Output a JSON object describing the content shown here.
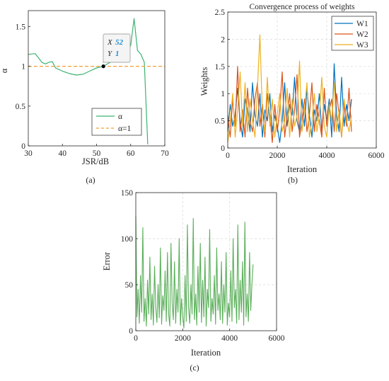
{
  "figure": {
    "label_a": "(a)",
    "label_b": "(b)",
    "label_c": "(c)"
  },
  "chart_data": [
    {
      "id": "a",
      "type": "line",
      "title": "",
      "xlabel": "JSR/dB",
      "ylabel": "α",
      "xlim": [
        30,
        70
      ],
      "ylim": [
        0,
        1.7
      ],
      "xticks": [
        30,
        40,
        50,
        60,
        70
      ],
      "xtick_labels": [
        "30",
        "40",
        "50",
        "60",
        "70"
      ],
      "yticks": [
        0,
        0.5,
        1,
        1.5
      ],
      "ytick_labels": [
        "0",
        "0.5",
        "1",
        "1.5"
      ],
      "grid": false,
      "legend_position": "lower-right",
      "series": [
        {
          "name": "α",
          "color": "#3cb371",
          "style": "solid",
          "x": [
            30,
            32,
            34,
            35,
            36,
            37,
            38,
            40,
            42,
            44,
            46,
            48,
            50,
            52,
            54,
            55,
            56,
            58,
            59,
            60,
            61,
            62,
            63,
            64,
            65
          ],
          "y": [
            1.15,
            1.16,
            1.05,
            1.03,
            1.05,
            1.06,
            0.98,
            0.94,
            0.91,
            0.89,
            0.9,
            0.94,
            0.98,
            1.0,
            1.05,
            1.1,
            1.15,
            1.18,
            1.2,
            1.26,
            1.6,
            1.2,
            1.15,
            1.05,
            0.02
          ]
        },
        {
          "name": "α=1",
          "color": "#f0a030",
          "style": "dashed",
          "x": [
            30,
            70
          ],
          "y": [
            1,
            1
          ]
        }
      ],
      "datatip": {
        "x": 52,
        "y": 1,
        "x_key": "X",
        "y_key": "Y",
        "x_text": "52",
        "y_text": "1"
      }
    },
    {
      "id": "b",
      "type": "line",
      "title": "Convergence process of weights",
      "xlabel": "Iteration",
      "ylabel": "Weights",
      "xlim": [
        0,
        6000
      ],
      "ylim": [
        0,
        2.5
      ],
      "xticks": [
        0,
        2000,
        4000,
        6000
      ],
      "xtick_labels": [
        "0",
        "2000",
        "4000",
        "6000"
      ],
      "yticks": [
        0,
        0.5,
        1,
        1.5,
        2,
        2.5
      ],
      "ytick_labels": [
        "0",
        "0.5",
        "1",
        "1.5",
        "2",
        "2.5"
      ],
      "grid": true,
      "legend_position": "top-right",
      "series": [
        {
          "name": "W1",
          "color": "#0072bd",
          "x": [
            0,
            100,
            200,
            300,
            400,
            500,
            600,
            700,
            800,
            900,
            1000,
            1100,
            1200,
            1300,
            1400,
            1500,
            1600,
            1700,
            1800,
            1900,
            2000,
            2100,
            2200,
            2300,
            2400,
            2500,
            2600,
            2700,
            2800,
            2900,
            3000,
            3100,
            3200,
            3300,
            3400,
            3500,
            3600,
            3700,
            3800,
            3900,
            4000,
            4100,
            4200,
            4300,
            4400,
            4500,
            4600,
            4700,
            4800,
            4900,
            5000
          ],
          "y": [
            0.3,
            0.8,
            0.4,
            0.6,
            1.1,
            0.5,
            0.2,
            0.9,
            0.7,
            0.3,
            1.2,
            0.6,
            0.4,
            1.0,
            0.2,
            0.7,
            0.5,
            1.0,
            0.3,
            0.6,
            0.4,
            0.1,
            0.5,
            1.2,
            0.4,
            0.8,
            0.6,
            1.3,
            0.5,
            0.3,
            0.9,
            0.4,
            1.1,
            0.6,
            0.2,
            0.7,
            0.5,
            1.0,
            0.3,
            0.8,
            0.5,
            0.9,
            0.2,
            1.55,
            0.6,
            0.3,
            1.3,
            0.4,
            0.8,
            0.5,
            0.9
          ]
        },
        {
          "name": "W2",
          "color": "#d95319",
          "x": [
            0,
            100,
            200,
            300,
            400,
            500,
            600,
            700,
            800,
            900,
            1000,
            1100,
            1200,
            1300,
            1400,
            1500,
            1600,
            1700,
            1800,
            1900,
            2000,
            2100,
            2200,
            2300,
            2400,
            2500,
            2600,
            2700,
            2800,
            2900,
            3000,
            3100,
            3200,
            3300,
            3400,
            3500,
            3600,
            3700,
            3800,
            3900,
            4000,
            4100,
            4200,
            4300,
            4400,
            4500,
            4600,
            4700,
            4800,
            4900,
            5000
          ],
          "y": [
            0.6,
            0.2,
            0.9,
            0.4,
            1.5,
            0.3,
            0.7,
            0.2,
            1.1,
            0.5,
            0.3,
            0.9,
            1.2,
            0.4,
            0.8,
            0.2,
            1.0,
            0.6,
            0.1,
            0.8,
            0.3,
            0.7,
            1.4,
            0.2,
            0.6,
            1.0,
            0.3,
            0.7,
            1.35,
            0.2,
            0.5,
            0.9,
            0.3,
            0.6,
            1.2,
            0.3,
            0.8,
            0.5,
            0.2,
            1.1,
            0.4,
            0.7,
            0.9,
            0.3,
            1.0,
            0.6,
            0.2,
            0.8,
            0.4,
            1.1,
            0.3
          ]
        },
        {
          "name": "W3",
          "color": "#edb120",
          "x": [
            0,
            100,
            200,
            300,
            400,
            500,
            600,
            700,
            800,
            900,
            1000,
            1100,
            1200,
            1300,
            1400,
            1500,
            1600,
            1700,
            1800,
            1900,
            2000,
            2100,
            2200,
            2300,
            2400,
            2500,
            2600,
            2700,
            2800,
            2900,
            3000,
            3100,
            3200,
            3300,
            3400,
            3500,
            3600,
            3700,
            3800,
            3900,
            4000,
            4100,
            4200,
            4300,
            4400,
            4500,
            4600,
            4700,
            4800,
            4900,
            5000
          ],
          "y": [
            0.1,
            0.5,
            1.0,
            0.2,
            0.7,
            1.4,
            0.4,
            1.2,
            0.3,
            0.9,
            0.5,
            0.2,
            1.1,
            2.08,
            0.6,
            0.3,
            1.3,
            0.4,
            0.9,
            0.2,
            0.6,
            1.0,
            0.3,
            0.5,
            1.1,
            0.2,
            0.9,
            0.4,
            0.6,
            1.6,
            0.3,
            0.7,
            1.2,
            0.2,
            0.5,
            1.0,
            0.3,
            0.6,
            1.3,
            0.4,
            0.2,
            0.8,
            0.5,
            1.2,
            0.3,
            0.7,
            0.2,
            0.9,
            0.5,
            0.3,
            0.6
          ]
        }
      ]
    },
    {
      "id": "c",
      "type": "line",
      "title": "",
      "xlabel": "Iteration",
      "ylabel": "Error",
      "xlim": [
        0,
        6000
      ],
      "ylim": [
        0,
        150
      ],
      "xticks": [
        0,
        2000,
        4000,
        6000
      ],
      "xtick_labels": [
        "0",
        "2000",
        "4000",
        "6000"
      ],
      "yticks": [
        0,
        50,
        100,
        150
      ],
      "ytick_labels": [
        "0",
        "50",
        "100",
        "150"
      ],
      "grid": true,
      "legend_position": "none",
      "series": [
        {
          "name": "",
          "color": "#5aaf5a",
          "x": [
            0,
            50,
            100,
            150,
            200,
            250,
            300,
            350,
            400,
            450,
            500,
            550,
            600,
            650,
            700,
            750,
            800,
            850,
            900,
            950,
            1000,
            1050,
            1100,
            1150,
            1200,
            1250,
            1300,
            1350,
            1400,
            1450,
            1500,
            1550,
            1600,
            1650,
            1700,
            1750,
            1800,
            1850,
            1900,
            1950,
            2000,
            2050,
            2100,
            2150,
            2200,
            2250,
            2300,
            2350,
            2400,
            2450,
            2500,
            2550,
            2600,
            2650,
            2700,
            2750,
            2800,
            2850,
            2900,
            2950,
            3000,
            3050,
            3100,
            3150,
            3200,
            3250,
            3300,
            3350,
            3400,
            3450,
            3500,
            3550,
            3600,
            3650,
            3700,
            3750,
            3800,
            3850,
            3900,
            3950,
            4000,
            4050,
            4100,
            4150,
            4200,
            4250,
            4300,
            4350,
            4400,
            4450,
            4500,
            4550,
            4600,
            4650,
            4700,
            4750,
            4800,
            4850,
            4900,
            4950,
            5000
          ],
          "y": [
            125,
            15,
            45,
            8,
            60,
            20,
            112,
            10,
            35,
            5,
            55,
            18,
            80,
            12,
            40,
            6,
            70,
            25,
            9,
            50,
            14,
            90,
            7,
            38,
            22,
            65,
            10,
            85,
            18,
            5,
            95,
            30,
            12,
            75,
            8,
            45,
            20,
            100,
            6,
            35,
            15,
            3,
            60,
            10,
            115,
            25,
            8,
            50,
            18,
            122,
            12,
            40,
            6,
            70,
            20,
            95,
            9,
            55,
            15,
            80,
            5,
            45,
            25,
            110,
            10,
            35,
            18,
            60,
            7,
            90,
            22,
            40,
            12,
            75,
            8,
            50,
            20,
            85,
            6,
            30,
            15,
            65,
            10,
            100,
            25,
            45,
            8,
            115,
            12,
            55,
            20,
            75,
            6,
            118,
            15,
            40,
            10,
            85,
            22,
            50,
            72
          ]
        }
      ]
    }
  ]
}
